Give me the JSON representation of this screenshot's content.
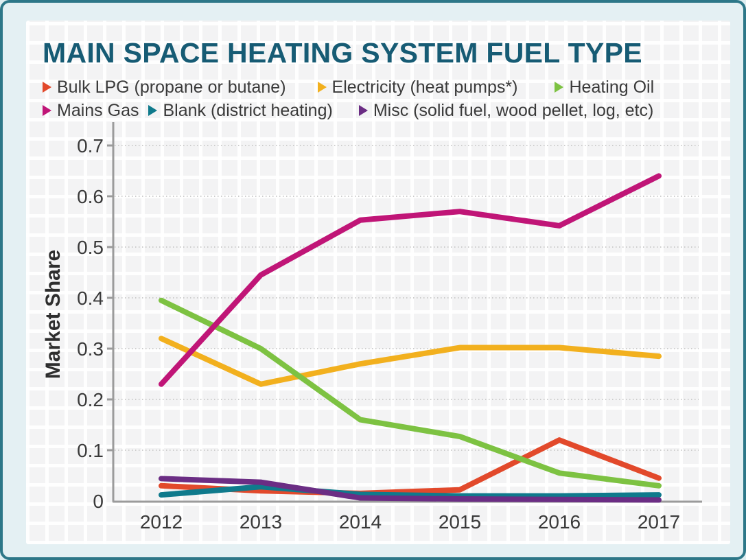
{
  "title": "MAIN SPACE HEATING SYSTEM FUEL TYPE",
  "colors": {
    "title_text": "#165b74",
    "frame_border": "#2d7788",
    "frame_background": "#e4f0f3",
    "axis": "#9b9b9b",
    "gridline": "#cdcdcd",
    "tick_text": "#3a3a3a"
  },
  "legend_rows": [
    [
      "Bulk LPG (propane or butane)",
      "Electricity (heat pumps*)",
      "Heating Oil"
    ],
    [
      "Mains Gas",
      "Blank (district heating)",
      "Misc (solid fuel, wood pellet, log, etc)"
    ]
  ],
  "chart_data": {
    "type": "line",
    "title": "MAIN SPACE HEATING SYSTEM FUEL TYPE",
    "xlabel": "",
    "ylabel": "Market Share",
    "categories": [
      "2012",
      "2013",
      "2014",
      "2015",
      "2016",
      "2017"
    ],
    "series": [
      {
        "name": "Bulk LPG (propane or butane)",
        "color": "#e2492b",
        "values": [
          0.03,
          0.02,
          0.015,
          0.022,
          0.12,
          0.045
        ]
      },
      {
        "name": "Electricity (heat pumps*)",
        "color": "#f2b01e",
        "values": [
          0.32,
          0.23,
          0.27,
          0.302,
          0.302,
          0.285
        ]
      },
      {
        "name": "Heating Oil",
        "color": "#7dc242",
        "values": [
          0.395,
          0.3,
          0.16,
          0.127,
          0.055,
          0.03
        ]
      },
      {
        "name": "Mains Gas",
        "color": "#c01577",
        "values": [
          0.23,
          0.445,
          0.553,
          0.57,
          0.542,
          0.64
        ]
      },
      {
        "name": "Blank (district heating)",
        "color": "#0f7a8c",
        "values": [
          0.012,
          0.028,
          0.013,
          0.01,
          0.01,
          0.012
        ]
      },
      {
        "name": "Misc (solid fuel, wood pellet, log, etc)",
        "color": "#6b2d84",
        "values": [
          0.044,
          0.037,
          0.006,
          0.004,
          0.003,
          0.002
        ]
      }
    ],
    "ylim": [
      0,
      0.7
    ],
    "y_ticks": [
      0,
      0.1,
      0.2,
      0.3,
      0.4,
      0.5,
      0.6,
      0.7
    ],
    "grid": "horizontal dotted",
    "legend_position": "top"
  }
}
